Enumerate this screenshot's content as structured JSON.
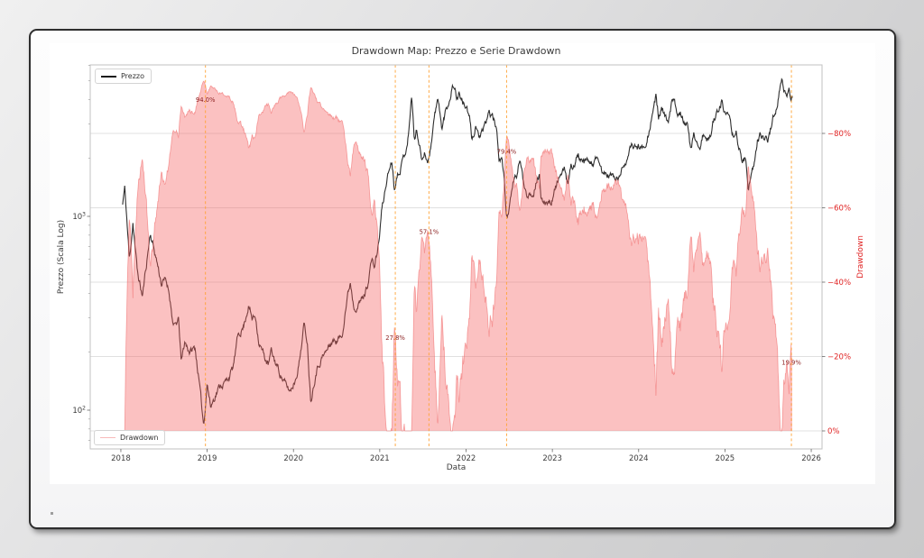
{
  "window": {
    "kind": "figure-window"
  },
  "chart_data": {
    "type": "line+area",
    "title": "Drawdown Map: Prezzo e Serie Drawdown",
    "xlabel": "Data",
    "ylabel_left": "Prezzo (Scala Log)",
    "ylabel_right": "Drawdown",
    "x_ticks": [
      2018,
      2019,
      2020,
      2021,
      2022,
      2023,
      2024,
      2025,
      2026
    ],
    "xlim": [
      2017.645,
      2026.125
    ],
    "y_left": {
      "scale": "log",
      "lim": [
        63,
        6300
      ],
      "major_ticks": [
        {
          "value": 100,
          "base": "10",
          "exp": "2"
        },
        {
          "value": 1000,
          "base": "10",
          "exp": "3"
        }
      ],
      "minor_ticks": [
        70,
        80,
        90,
        200,
        300,
        400,
        500,
        600,
        700,
        800,
        900,
        2000,
        3000,
        4000,
        5000,
        6000
      ]
    },
    "y_right": {
      "scale": "linear-inverted-drawdown-pct",
      "lim_bottom_to_top": [
        -4.8,
        98.4
      ],
      "ticks": [
        {
          "value": 0,
          "label": "0%"
        },
        {
          "value": 20,
          "label": "−20%"
        },
        {
          "value": 40,
          "label": "−40%"
        },
        {
          "value": 60,
          "label": "−60%"
        },
        {
          "value": 80,
          "label": "−80%"
        }
      ]
    },
    "grid": {
      "horizontal_at_right_ticks": true,
      "color": "#e0e0e0"
    },
    "legend": [
      {
        "label": "Prezzo",
        "color": "#1a1a1a"
      },
      {
        "label": "Drawdown",
        "color": "rgba(242,130,130,0.55)"
      }
    ],
    "colors": {
      "price_line": "#1c1c1c",
      "drawdown_fill": "rgba(245,92,92,0.38)",
      "drawdown_edge": "rgba(238,92,92,0.55)",
      "marker_line": "#ffa335",
      "annotation_text": "#8b1f1f",
      "right_axis_text": "#e02424",
      "left_axis_text": "#3c3c3c",
      "spine": "#c2c2c2",
      "tick": "#666666"
    },
    "annotations": [
      {
        "x": 2018.98,
        "label": "94.0%",
        "label_y_dd": 88.5
      },
      {
        "x": 2021.18,
        "label": "27.8%",
        "label_y_dd": 24.5
      },
      {
        "x": 2021.57,
        "label": "57.1%",
        "label_y_dd": 53.0
      },
      {
        "x": 2022.47,
        "label": "79.4%",
        "label_y_dd": 74.5
      },
      {
        "x": 2025.77,
        "label": "19.9%",
        "label_y_dd": 17.8
      }
    ],
    "series": [
      {
        "name": "Prezzo",
        "axis": "left",
        "x": [
          2018.02,
          2018.045,
          2018.1,
          2018.14,
          2018.19,
          2018.25,
          2018.34,
          2018.42,
          2018.47,
          2018.52,
          2018.56,
          2018.61,
          2018.67,
          2018.7,
          2018.74,
          2018.8,
          2018.86,
          2018.9,
          2018.94,
          2018.96,
          2019.0,
          2019.04,
          2019.1,
          2019.16,
          2019.22,
          2019.3,
          2019.36,
          2019.42,
          2019.48,
          2019.52,
          2019.56,
          2019.6,
          2019.66,
          2019.71,
          2019.74,
          2019.8,
          2019.86,
          2019.92,
          2019.96,
          2020.02,
          2020.07,
          2020.12,
          2020.16,
          2020.2,
          2020.26,
          2020.32,
          2020.38,
          2020.44,
          2020.5,
          2020.56,
          2020.6,
          2020.63,
          2020.66,
          2020.7,
          2020.76,
          2020.82,
          2020.86,
          2020.9,
          2020.94,
          2020.99,
          2021.02,
          2021.05,
          2021.08,
          2021.11,
          2021.14,
          2021.17,
          2021.21,
          2021.25,
          2021.3,
          2021.34,
          2021.37,
          2021.4,
          2021.43,
          2021.46,
          2021.49,
          2021.52,
          2021.55,
          2021.59,
          2021.63,
          2021.67,
          2021.7,
          2021.72,
          2021.76,
          2021.8,
          2021.83,
          2021.86,
          2021.89,
          2021.92,
          2021.96,
          2022.0,
          2022.04,
          2022.07,
          2022.11,
          2022.15,
          2022.19,
          2022.23,
          2022.26,
          2022.31,
          2022.35,
          2022.38,
          2022.42,
          2022.44,
          2022.47,
          2022.51,
          2022.55,
          2022.6,
          2022.62,
          2022.66,
          2022.7,
          2022.74,
          2022.78,
          2022.82,
          2022.85,
          2022.87,
          2022.91,
          2022.95,
          2022.99,
          2023.04,
          2023.07,
          2023.11,
          2023.15,
          2023.18,
          2023.22,
          2023.26,
          2023.3,
          2023.35,
          2023.4,
          2023.45,
          2023.5,
          2023.54,
          2023.58,
          2023.63,
          2023.68,
          2023.72,
          2023.77,
          2023.82,
          2023.87,
          2023.92,
          2023.96,
          2024.0,
          2024.04,
          2024.08,
          2024.13,
          2024.17,
          2024.2,
          2024.23,
          2024.27,
          2024.31,
          2024.34,
          2024.38,
          2024.41,
          2024.45,
          2024.49,
          2024.53,
          2024.57,
          2024.6,
          2024.64,
          2024.68,
          2024.71,
          2024.75,
          2024.79,
          2024.83,
          2024.86,
          2024.9,
          2024.93,
          2024.96,
          2024.99,
          2025.03,
          2025.06,
          2025.09,
          2025.13,
          2025.17,
          2025.2,
          2025.24,
          2025.27,
          2025.31,
          2025.34,
          2025.38,
          2025.42,
          2025.46,
          2025.5,
          2025.54,
          2025.58,
          2025.61,
          2025.64,
          2025.66,
          2025.69,
          2025.72,
          2025.745,
          2025.765,
          2025.78
        ],
        "y": [
          1150,
          1400,
          590,
          940,
          520,
          385,
          820,
          580,
          450,
          470,
          410,
          265,
          290,
          175,
          225,
          200,
          210,
          150,
          100,
          84,
          140,
          104,
          122,
          136,
          140,
          165,
          245,
          270,
          350,
          295,
          310,
          225,
          190,
          170,
          200,
          173,
          150,
          132,
          125,
          144,
          180,
          275,
          230,
          112,
          160,
          185,
          200,
          225,
          230,
          240,
          330,
          395,
          460,
          345,
          355,
          390,
          450,
          590,
          550,
          735,
          1050,
          1250,
          1550,
          1750,
          1950,
          1410,
          1700,
          1850,
          2200,
          2800,
          4330,
          2450,
          2800,
          2300,
          1950,
          2250,
          1860,
          2300,
          3200,
          3950,
          3450,
          2780,
          3450,
          3900,
          4500,
          4850,
          4100,
          4350,
          3850,
          3700,
          3150,
          2440,
          2950,
          2600,
          2650,
          3000,
          3450,
          3250,
          2850,
          2050,
          1950,
          1550,
          1000,
          1150,
          1500,
          1700,
          1980,
          1550,
          1330,
          1320,
          1330,
          1570,
          1630,
          1150,
          1180,
          1220,
          1195,
          1420,
          1570,
          1650,
          1700,
          1440,
          1800,
          1870,
          2060,
          1830,
          1900,
          1870,
          1930,
          1850,
          1680,
          1640,
          1620,
          1580,
          1560,
          1800,
          2050,
          2250,
          2300,
          2300,
          2240,
          2420,
          2900,
          3600,
          4070,
          3300,
          3550,
          3200,
          2950,
          3750,
          3900,
          3400,
          3480,
          3150,
          2950,
          2180,
          2620,
          2400,
          2300,
          2650,
          2420,
          2520,
          3100,
          3350,
          3700,
          4000,
          3340,
          3280,
          2950,
          2650,
          2700,
          2200,
          1890,
          2010,
          1420,
          1620,
          1820,
          2550,
          2600,
          2420,
          2520,
          2980,
          3600,
          3750,
          4700,
          4940,
          4350,
          4300,
          4550,
          3980,
          4180
        ]
      },
      {
        "name": "Drawdown",
        "axis": "right",
        "derived_from": "Prezzo",
        "formula": "drawdown_pct = (1 - price / running_max_price) * 100"
      }
    ]
  }
}
